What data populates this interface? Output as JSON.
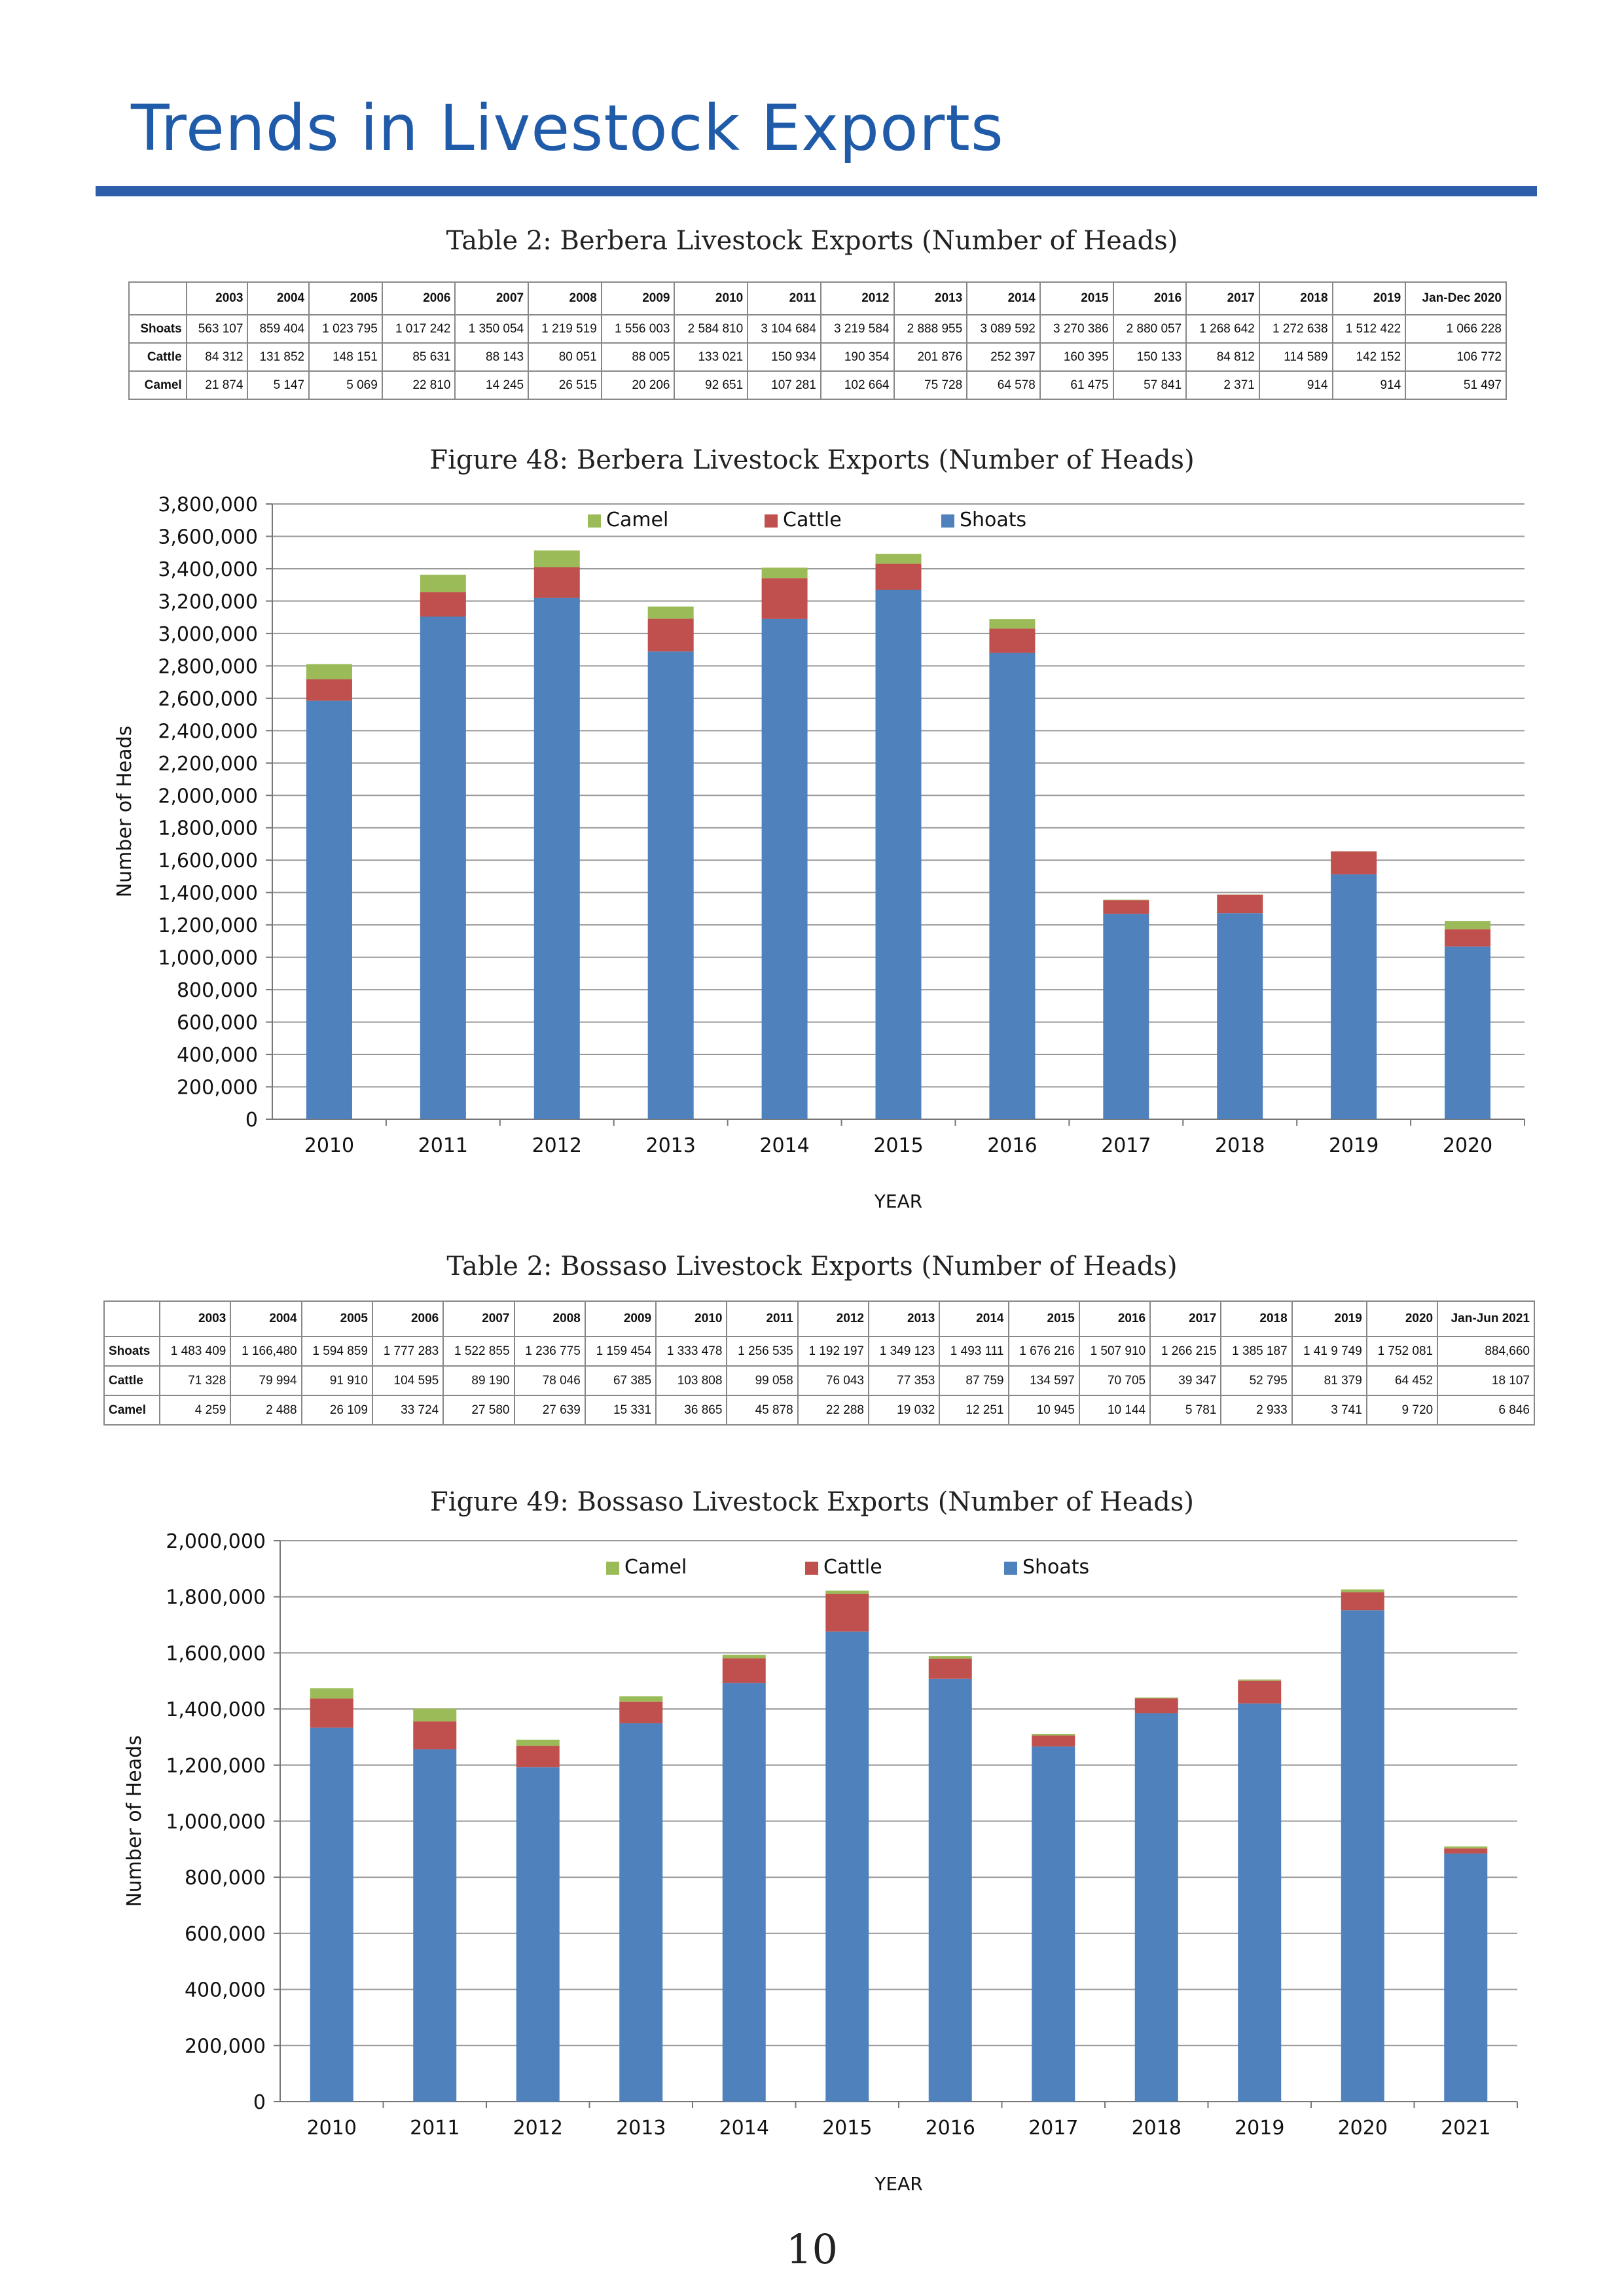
{
  "page": {
    "title": "Trends in Livestock Exports",
    "page_number": "10"
  },
  "berbera_table": {
    "caption": "Table 2: Berbera Livestock Exports (Number of Heads)",
    "columns": [
      "2003",
      "2004",
      "2005",
      "2006",
      "2007",
      "2008",
      "2009",
      "2010",
      "2011",
      "2012",
      "2013",
      "2014",
      "2015",
      "2016",
      "2017",
      "2018",
      "2019",
      "Jan-Dec 2020"
    ],
    "rows": [
      {
        "label": "Shoats",
        "values": [
          "563 107",
          "859 404",
          "1 023 795",
          "1 017 242",
          "1 350 054",
          "1 219 519",
          "1 556 003",
          "2 584 810",
          "3 104 684",
          "3 219 584",
          "2 888 955",
          "3 089 592",
          "3 270 386",
          "2 880 057",
          "1 268 642",
          "1 272 638",
          "1 512 422",
          "1 066 228"
        ]
      },
      {
        "label": "Cattle",
        "values": [
          "84 312",
          "131 852",
          "148 151",
          "85 631",
          "88 143",
          "80 051",
          "88 005",
          "133 021",
          "150 934",
          "190 354",
          "201 876",
          "252 397",
          "160 395",
          "150 133",
          "84 812",
          "114 589",
          "142 152",
          "106 772"
        ]
      },
      {
        "label": "Camel",
        "values": [
          "21 874",
          "5 147",
          "5 069",
          "22 810",
          "14 245",
          "26 515",
          "20 206",
          "92 651",
          "107 281",
          "102 664",
          "75 728",
          "64 578",
          "61 475",
          "57 841",
          "2 371",
          "914",
          "914",
          "51 497"
        ]
      }
    ]
  },
  "bossaso_table": {
    "caption": "Table 2: Bossaso Livestock Exports (Number of Heads)",
    "columns": [
      "2003",
      "2004",
      "2005",
      "2006",
      "2007",
      "2008",
      "2009",
      "2010",
      "2011",
      "2012",
      "2013",
      "2014",
      "2015",
      "2016",
      "2017",
      "2018",
      "2019",
      "2020",
      "Jan-Jun 2021"
    ],
    "rows": [
      {
        "label": "Shoats",
        "values": [
          "1 483 409",
          "1 166,480",
          "1 594 859",
          "1 777 283",
          "1 522 855",
          "1 236 775",
          "1 159 454",
          "1 333 478",
          "1 256 535",
          "1 192 197",
          "1 349 123",
          "1 493 111",
          "1 676 216",
          "1 507 910",
          "1 266 215",
          "1 385 187",
          "1 41 9 749",
          "1 752 081",
          "884,660"
        ]
      },
      {
        "label": "Cattle",
        "values": [
          "71 328",
          "79 994",
          "91 910",
          "104 595",
          "89 190",
          "78 046",
          "67 385",
          "103 808",
          "99 058",
          "76 043",
          "77 353",
          "87 759",
          "134 597",
          "70 705",
          "39 347",
          "52 795",
          "81 379",
          "64 452",
          "18 107"
        ]
      },
      {
        "label": "Camel",
        "values": [
          "4 259",
          "2 488",
          "26 109",
          "33 724",
          "27 580",
          "27 639",
          "15 331",
          "36 865",
          "45 878",
          "22 288",
          "19 032",
          "12 251",
          "10 945",
          "10 144",
          "5 781",
          "2 933",
          "3 741",
          "9 720",
          "6 846"
        ]
      }
    ]
  },
  "chart_data": [
    {
      "type": "bar",
      "stacked": true,
      "title": "Figure 48: Berbera Livestock Exports (Number of Heads)",
      "xlabel": "YEAR",
      "ylabel": "Number of Heads",
      "ylim": [
        0,
        3800000
      ],
      "ytick_step": 200000,
      "ytick_labels": [
        "0",
        "200,000",
        "400,000",
        "600,000",
        "800,000",
        "1,000,000",
        "1,200,000",
        "1,400,000",
        "1,600,000",
        "1,800,000",
        "2,000,000",
        "2,200,000",
        "2,400,000",
        "2,600,000",
        "2,800,000",
        "3,000,000",
        "3,200,000",
        "3,400,000",
        "3,600,000",
        "3,800,000"
      ],
      "grid": true,
      "legend_position": "top-center",
      "legend": [
        "Camel",
        "Cattle",
        "Shoats"
      ],
      "categories": [
        "2010",
        "2011",
        "2012",
        "2013",
        "2014",
        "2015",
        "2016",
        "2017",
        "2018",
        "2019",
        "2020"
      ],
      "series": [
        {
          "name": "Shoats",
          "color": "#4f81bd",
          "values": [
            2584810,
            3104684,
            3219584,
            2888955,
            3089592,
            3270386,
            2880057,
            1268642,
            1272638,
            1512422,
            1066228
          ]
        },
        {
          "name": "Cattle",
          "color": "#c0504d",
          "values": [
            133021,
            150934,
            190354,
            201876,
            252397,
            160395,
            150133,
            84812,
            114589,
            142152,
            106772
          ]
        },
        {
          "name": "Camel",
          "color": "#9bbb59",
          "values": [
            92651,
            107281,
            102664,
            75728,
            64578,
            61475,
            57841,
            2371,
            914,
            914,
            51497
          ]
        }
      ]
    },
    {
      "type": "bar",
      "stacked": true,
      "title": "Figure 49: Bossaso Livestock Exports (Number of Heads)",
      "xlabel": "YEAR",
      "ylabel": "Number of Heads",
      "ylim": [
        0,
        2000000
      ],
      "ytick_step": 200000,
      "ytick_labels": [
        "0",
        "200,000",
        "400,000",
        "600,000",
        "800,000",
        "1,000,000",
        "1,200,000",
        "1,400,000",
        "1,600,000",
        "1,800,000",
        "2,000,000"
      ],
      "grid": true,
      "legend_position": "top-center",
      "legend": [
        "Camel",
        "Cattle",
        "Shoats"
      ],
      "categories": [
        "2010",
        "2011",
        "2012",
        "2013",
        "2014",
        "2015",
        "2016",
        "2017",
        "2018",
        "2019",
        "2020",
        "2021"
      ],
      "series": [
        {
          "name": "Shoats",
          "color": "#4f81bd",
          "values": [
            1333478,
            1256535,
            1192197,
            1349123,
            1493111,
            1676216,
            1507910,
            1266215,
            1385187,
            1419749,
            1752081,
            884660
          ]
        },
        {
          "name": "Cattle",
          "color": "#c0504d",
          "values": [
            103808,
            99058,
            76043,
            77353,
            87759,
            134597,
            70705,
            39347,
            52795,
            81379,
            64452,
            18107
          ]
        },
        {
          "name": "Camel",
          "color": "#9bbb59",
          "values": [
            36865,
            45878,
            22288,
            19032,
            12251,
            10945,
            10144,
            5781,
            2933,
            3741,
            9720,
            6846
          ]
        }
      ]
    }
  ]
}
